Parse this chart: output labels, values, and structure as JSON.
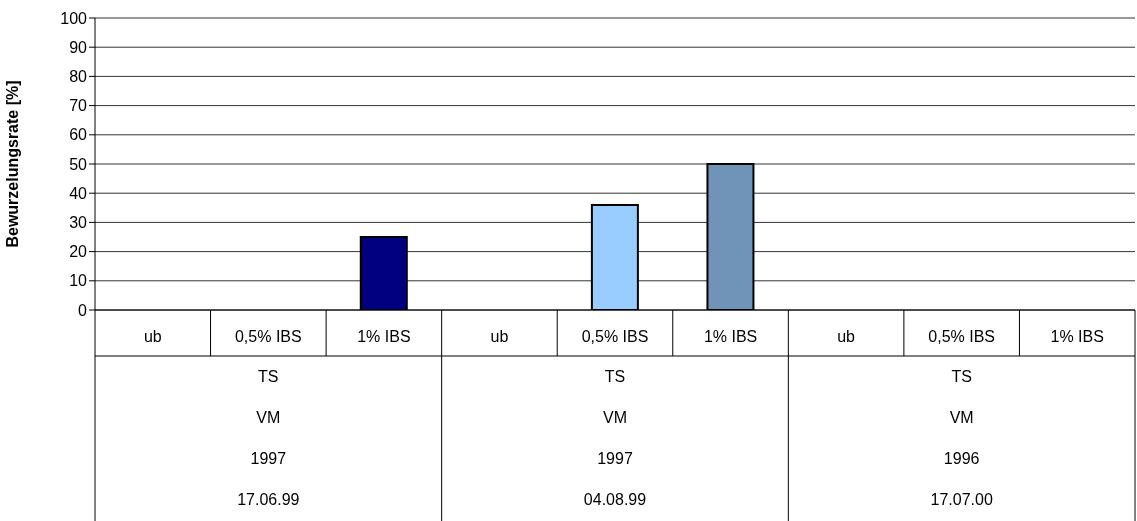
{
  "chart_data": {
    "type": "bar",
    "ylabel": "Bewurzelungsrate [%]",
    "categories": [
      "ub",
      "0,5% IBS",
      "1% IBS",
      "ub",
      "0,5% IBS",
      "1% IBS",
      "ub",
      "0,5% IBS",
      "1% IBS"
    ],
    "values": [
      0,
      0,
      25,
      0,
      36,
      50,
      0,
      0,
      0
    ],
    "colors": [
      "#000080",
      "#99ccff",
      "#000080",
      "#99ccff",
      "#99ccff",
      "#6f94b8",
      "#000080",
      "#99ccff",
      "#6f94b8"
    ],
    "ylim": [
      0,
      100
    ],
    "yticks": [
      0,
      10,
      20,
      30,
      40,
      50,
      60,
      70,
      80,
      90,
      100
    ],
    "grid": "y",
    "annotations": [
      "TS",
      "TS",
      "TS",
      "VM",
      "VM",
      "VM",
      "1997",
      "1997",
      "1996",
      "17.06.99",
      "04.08.99",
      "17.07.00"
    ]
  }
}
